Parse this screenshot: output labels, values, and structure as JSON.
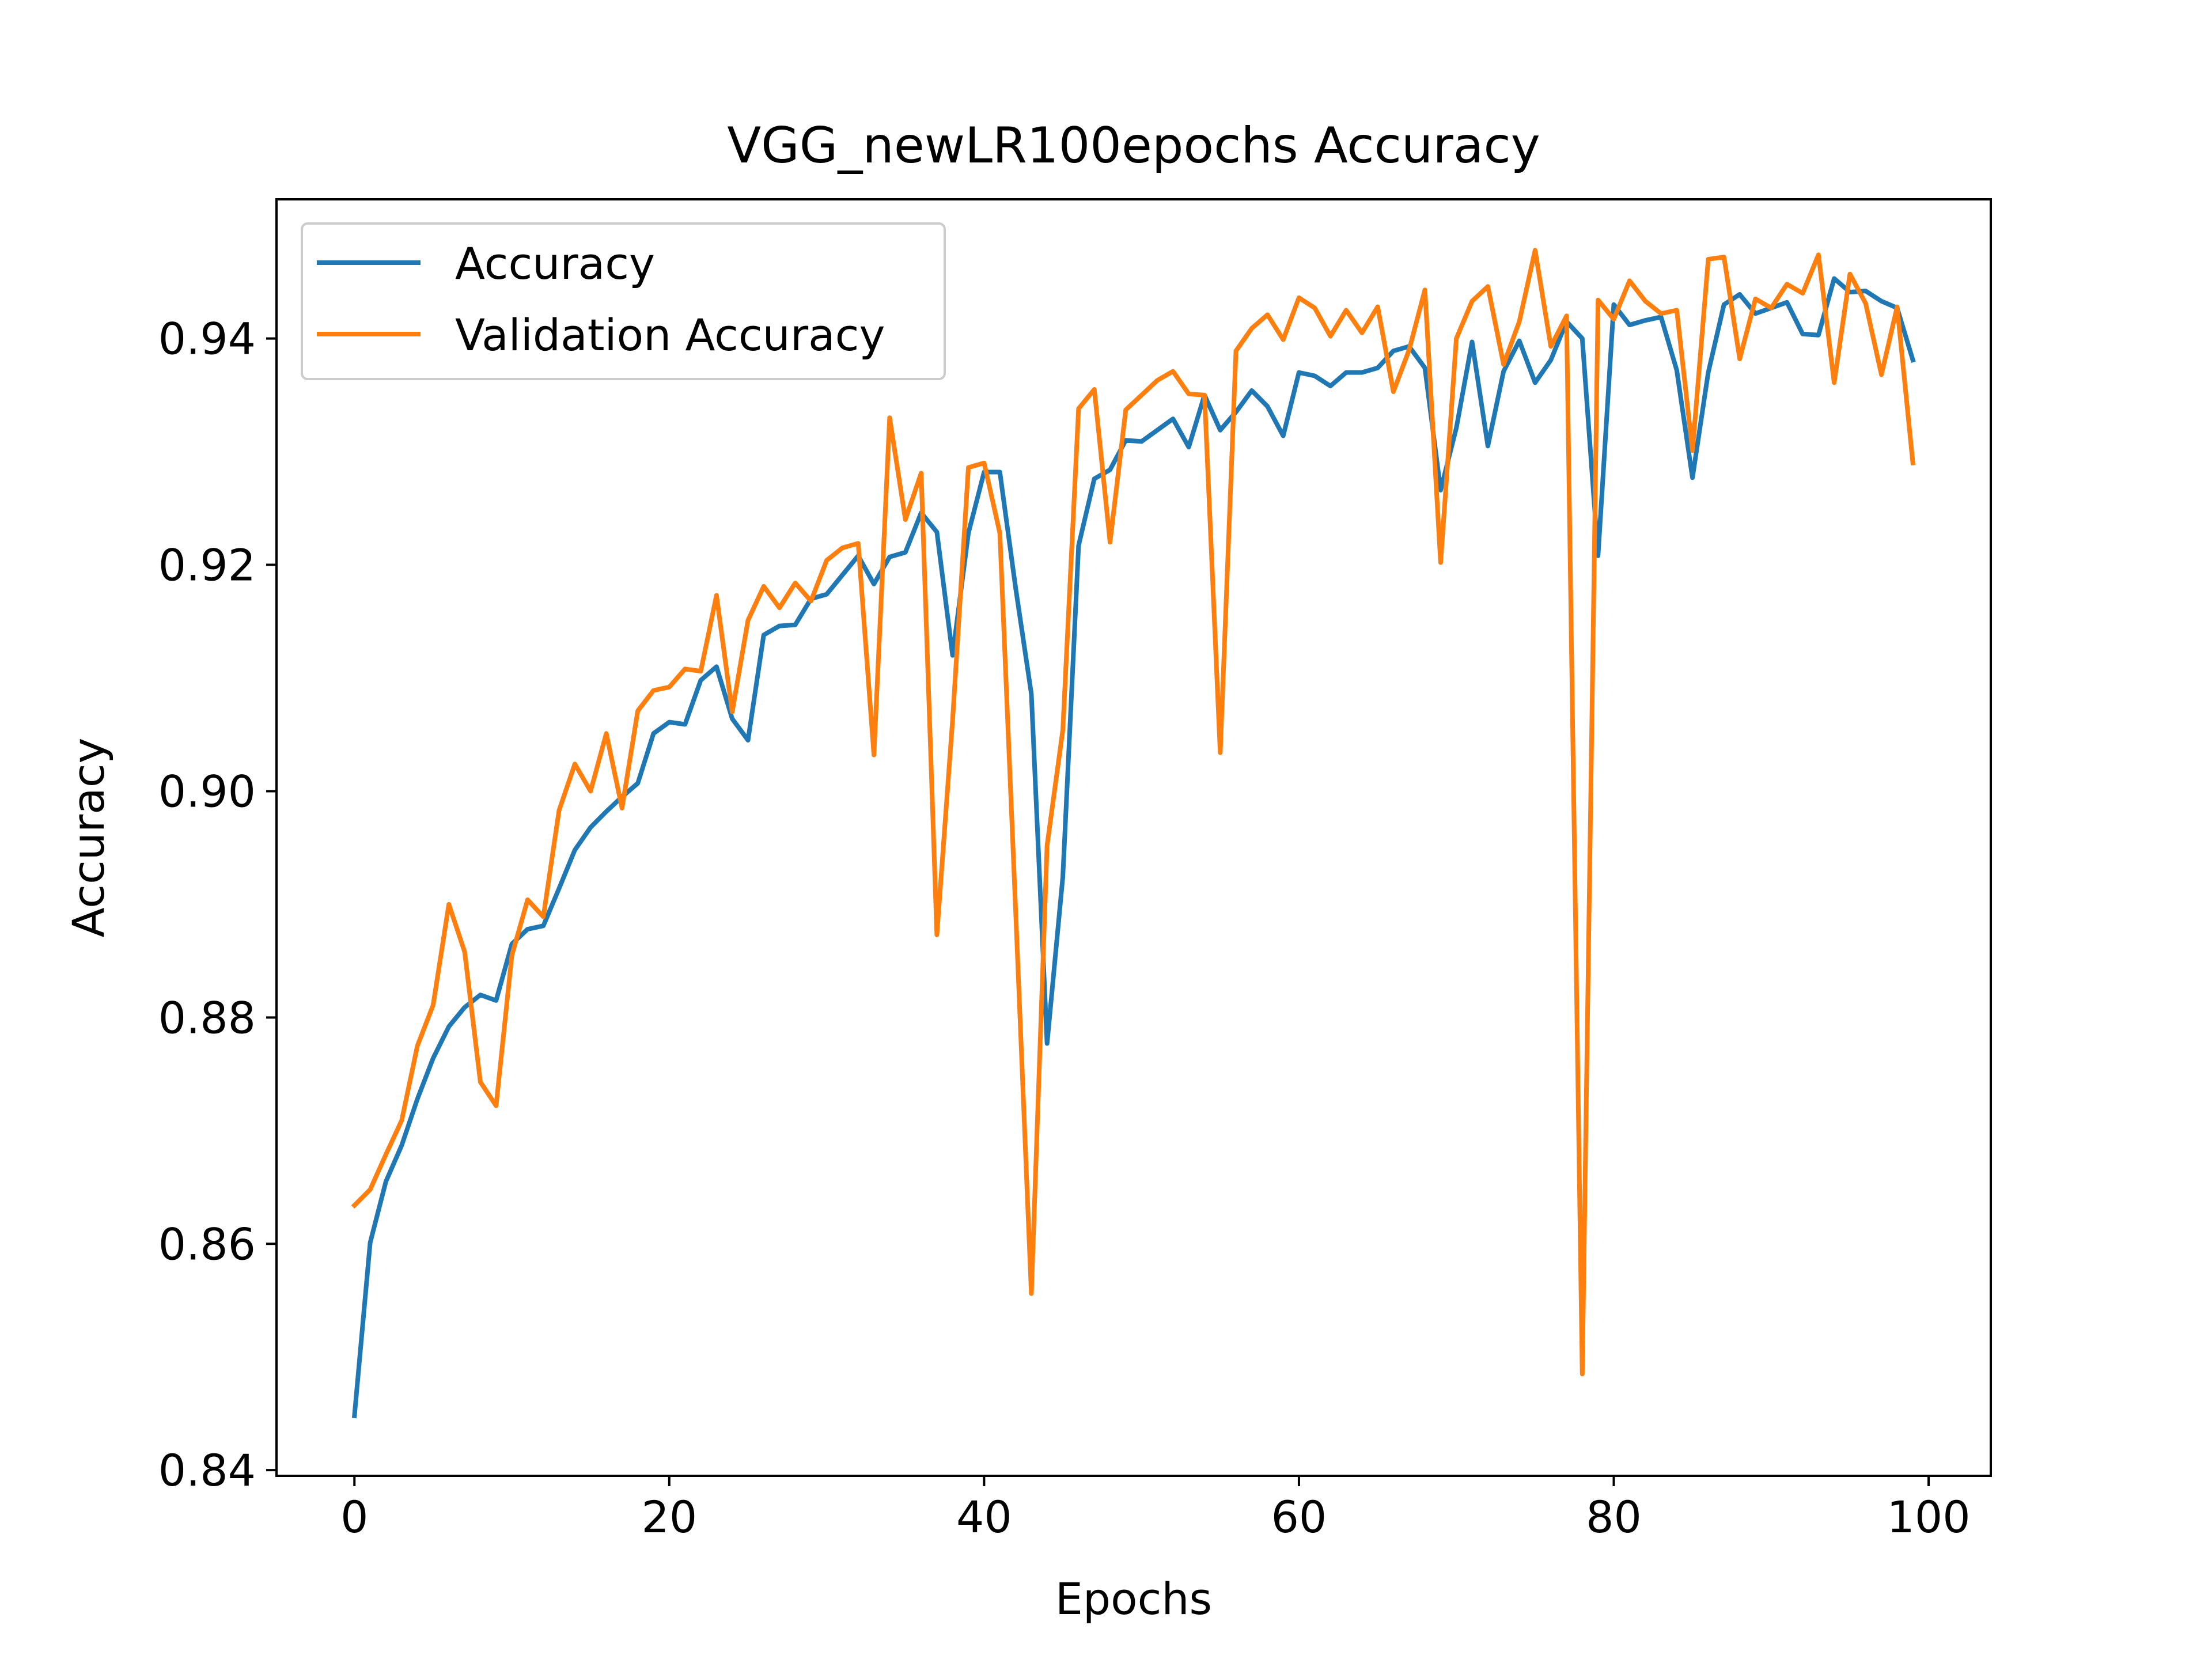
{
  "chart_data": {
    "type": "line",
    "title": "VGG_newLR100epochs Accuracy",
    "xlabel": "Epochs",
    "ylabel": "Accuracy",
    "xlim": [
      -4.95,
      103.95
    ],
    "ylim": [
      0.8395,
      0.9523
    ],
    "xticks": [
      0,
      20,
      40,
      60,
      80,
      100
    ],
    "xtick_labels": [
      "0",
      "20",
      "40",
      "60",
      "80",
      "100"
    ],
    "yticks": [
      0.84,
      0.86,
      0.88,
      0.9,
      0.92,
      0.94
    ],
    "ytick_labels": [
      "0.84",
      "0.86",
      "0.88",
      "0.90",
      "0.92",
      "0.94"
    ],
    "grid": false,
    "legend_position": "upper-left",
    "x": [
      0,
      1,
      2,
      3,
      4,
      5,
      6,
      7,
      8,
      9,
      10,
      11,
      12,
      13,
      14,
      15,
      16,
      17,
      18,
      19,
      20,
      21,
      22,
      23,
      24,
      25,
      26,
      27,
      28,
      29,
      30,
      31,
      32,
      33,
      34,
      35,
      36,
      37,
      38,
      39,
      40,
      41,
      42,
      43,
      44,
      45,
      46,
      47,
      48,
      49,
      50,
      51,
      52,
      53,
      54,
      55,
      56,
      57,
      58,
      59,
      60,
      61,
      62,
      63,
      64,
      65,
      66,
      67,
      68,
      69,
      70,
      71,
      72,
      73,
      74,
      75,
      76,
      77,
      78,
      79,
      80,
      81,
      82,
      83,
      84,
      85,
      86,
      87,
      88,
      89,
      90,
      91,
      92,
      93,
      94,
      95,
      96,
      97,
      98,
      99
    ],
    "series": [
      {
        "name": "Accuracy",
        "color": "#1f77b4",
        "values": [
          0.8448,
          0.8601,
          0.8655,
          0.8687,
          0.8728,
          0.8764,
          0.8792,
          0.8809,
          0.882,
          0.8815,
          0.8865,
          0.8878,
          0.8881,
          0.8914,
          0.8948,
          0.8968,
          0.8982,
          0.8995,
          0.9007,
          0.9051,
          0.9061,
          0.9059,
          0.9098,
          0.911,
          0.9064,
          0.9045,
          0.9138,
          0.9146,
          0.9147,
          0.917,
          0.9174,
          0.9191,
          0.9208,
          0.9183,
          0.9207,
          0.9211,
          0.9246,
          0.9229,
          0.912,
          0.9228,
          0.9282,
          0.9282,
          0.918,
          0.9086,
          0.8777,
          0.8924,
          0.9217,
          0.9276,
          0.9284,
          0.931,
          0.9309,
          0.9319,
          0.9329,
          0.9304,
          0.935,
          0.9319,
          0.9335,
          0.9354,
          0.934,
          0.9314,
          0.937,
          0.9367,
          0.9358,
          0.937,
          0.937,
          0.9374,
          0.9389,
          0.9393,
          0.9374,
          0.9266,
          0.9321,
          0.9397,
          0.9305,
          0.9371,
          0.9398,
          0.9361,
          0.9381,
          0.9415,
          0.94,
          0.9208,
          0.943,
          0.9412,
          0.9416,
          0.9419,
          0.9372,
          0.9277,
          0.937,
          0.943,
          0.9439,
          0.9422,
          0.9427,
          0.9432,
          0.9404,
          0.9403,
          0.9453,
          0.9441,
          0.9442,
          0.9433,
          0.9427,
          0.9381
        ]
      },
      {
        "name": "Validation Accuracy",
        "color": "#ff7f0e",
        "values": [
          0.8634,
          0.8648,
          0.8679,
          0.8709,
          0.8775,
          0.8811,
          0.89,
          0.8858,
          0.8743,
          0.8722,
          0.8855,
          0.8904,
          0.8889,
          0.8983,
          0.9024,
          0.9,
          0.9051,
          0.8985,
          0.9071,
          0.9089,
          0.9092,
          0.9108,
          0.9106,
          0.9173,
          0.907,
          0.9151,
          0.9181,
          0.9162,
          0.9184,
          0.9168,
          0.9204,
          0.9215,
          0.9219,
          0.9032,
          0.933,
          0.924,
          0.9281,
          0.8873,
          0.9063,
          0.9286,
          0.929,
          0.9228,
          0.8896,
          0.8556,
          0.8952,
          0.9054,
          0.9338,
          0.9355,
          0.922,
          0.9337,
          0.935,
          0.9363,
          0.9371,
          0.9351,
          0.935,
          0.9034,
          0.9389,
          0.9409,
          0.9421,
          0.9399,
          0.9436,
          0.9427,
          0.9402,
          0.9425,
          0.9405,
          0.9428,
          0.9353,
          0.939,
          0.9443,
          0.9202,
          0.94,
          0.9433,
          0.9446,
          0.9377,
          0.9415,
          0.9478,
          0.9393,
          0.942,
          0.8485,
          0.9434,
          0.9417,
          0.9451,
          0.9433,
          0.9422,
          0.9425,
          0.9301,
          0.947,
          0.9472,
          0.9382,
          0.9435,
          0.9427,
          0.9448,
          0.944,
          0.9474,
          0.9361,
          0.9457,
          0.9431,
          0.9368,
          0.9428,
          0.929
        ]
      }
    ]
  }
}
